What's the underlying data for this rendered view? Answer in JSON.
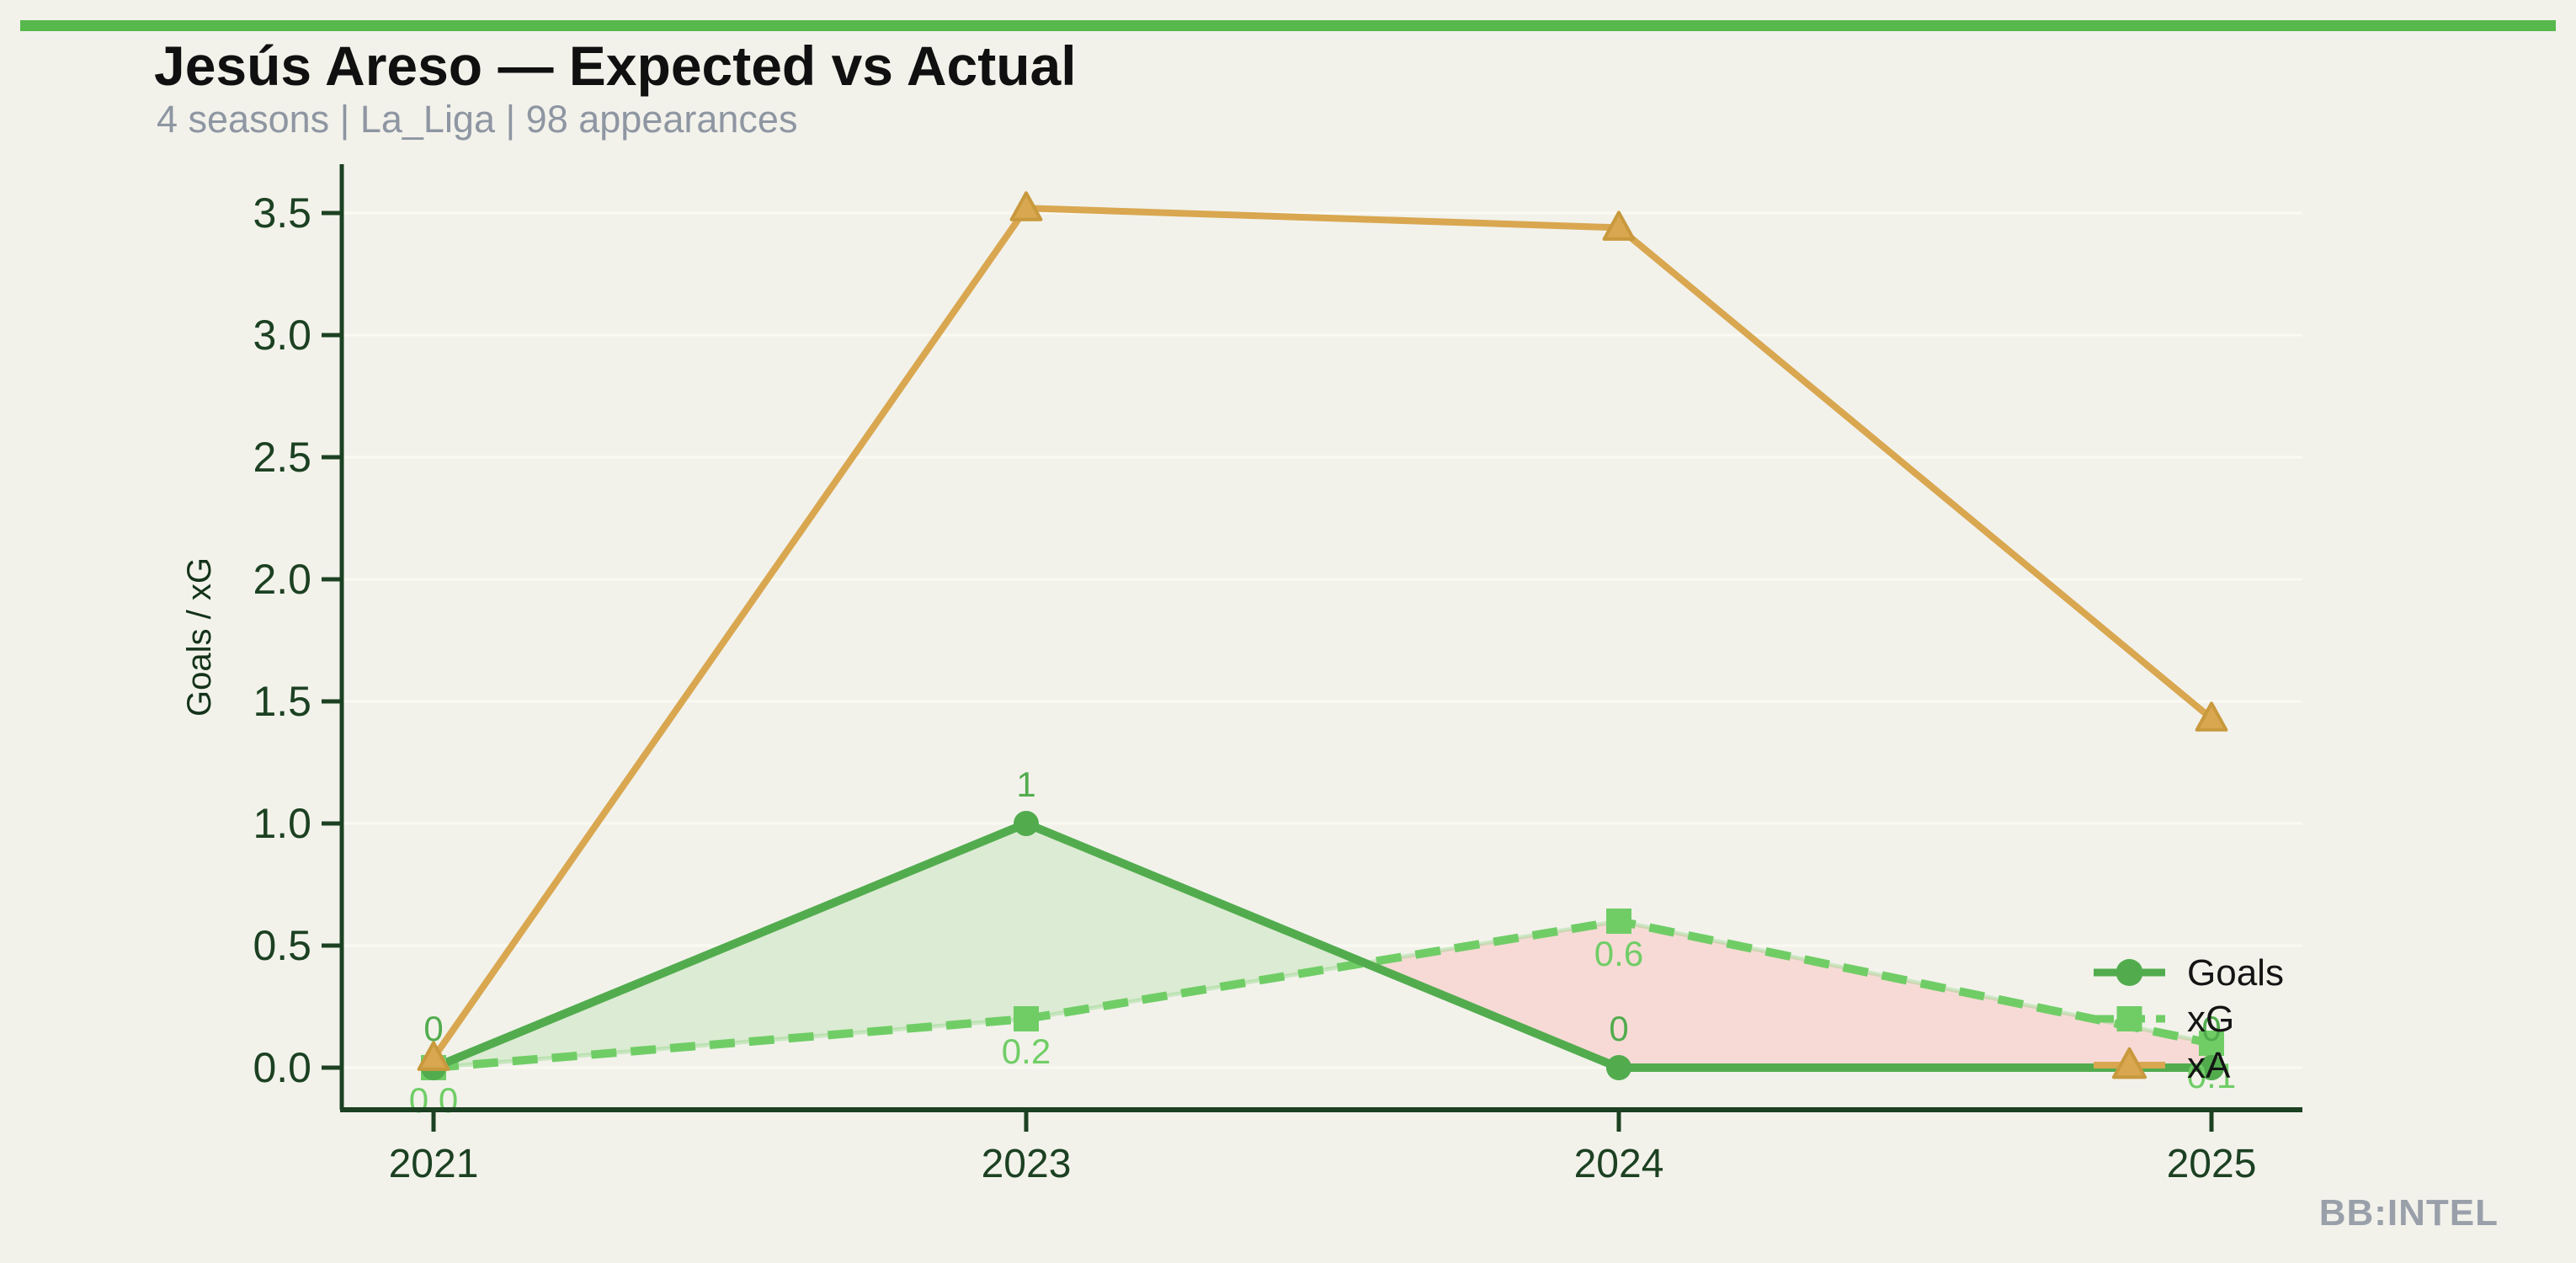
{
  "page": {
    "background": "#f2f2eb",
    "accent_bar_color": "#57b84c",
    "watermark": "BB:INTEL"
  },
  "header": {
    "title": "Jesús Areso — Expected vs Actual",
    "subtitle": "4 seasons | La_Liga | 98 appearances"
  },
  "chart_data": {
    "type": "line",
    "categories": [
      "2021",
      "2023",
      "2024",
      "2025"
    ],
    "series": [
      {
        "name": "Goals",
        "values": [
          0,
          1,
          0,
          0
        ],
        "point_labels": [
          "0",
          "1",
          "0",
          "0"
        ],
        "color": "#52ac4e",
        "marker": "circle",
        "line_style": "solid"
      },
      {
        "name": "xG",
        "values": [
          0.0,
          0.2,
          0.6,
          0.1
        ],
        "point_labels": [
          "0.0",
          "0.2",
          "0.6",
          "0.1"
        ],
        "color": "#70cd66",
        "marker": "square",
        "line_style": "dashed"
      },
      {
        "name": "xA",
        "values": [
          0.04,
          3.52,
          3.44,
          1.43
        ],
        "point_labels": null,
        "color": "#d9a750",
        "marker": "triangle",
        "line_style": "solid"
      }
    ],
    "title": "Jesús Areso — Expected vs Actual",
    "xlabel": "",
    "ylabel": "Goals / xG",
    "yticks": [
      0.0,
      0.5,
      1.0,
      1.5,
      2.0,
      2.5,
      3.0,
      3.5
    ],
    "ylim": [
      -0.17,
      3.7
    ],
    "grid": "faint-horizontal",
    "legend_position": "right-inside",
    "legend_entries": [
      "Goals",
      "xG",
      "xA"
    ],
    "fill_between": {
      "upper_series": "Goals",
      "lower_series": "xG",
      "over_color": "#dcebd3",
      "under_color": "#f7dad6"
    },
    "axis_color": "#1c4122",
    "gridline_color": "#fafaf3"
  }
}
